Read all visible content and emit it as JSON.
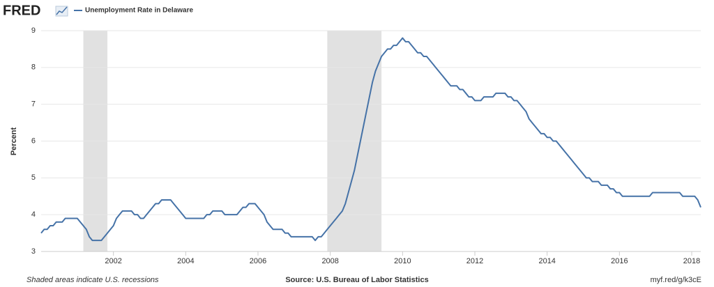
{
  "logo": "FRED",
  "chart_data": {
    "type": "line",
    "y_label": "Percent",
    "series": [
      {
        "name": "Unemployment Rate in Delaware",
        "color": "#4572a7",
        "values": [
          3.5,
          3.6,
          3.6,
          3.7,
          3.7,
          3.8,
          3.8,
          3.8,
          3.9,
          3.9,
          3.9,
          3.9,
          3.9,
          3.8,
          3.7,
          3.6,
          3.4,
          3.3,
          3.3,
          3.3,
          3.3,
          3.4,
          3.5,
          3.6,
          3.7,
          3.9,
          4.0,
          4.1,
          4.1,
          4.1,
          4.1,
          4.0,
          4.0,
          3.9,
          3.9,
          4.0,
          4.1,
          4.2,
          4.3,
          4.3,
          4.4,
          4.4,
          4.4,
          4.4,
          4.3,
          4.2,
          4.1,
          4.0,
          3.9,
          3.9,
          3.9,
          3.9,
          3.9,
          3.9,
          3.9,
          4.0,
          4.0,
          4.1,
          4.1,
          4.1,
          4.1,
          4.0,
          4.0,
          4.0,
          4.0,
          4.0,
          4.1,
          4.2,
          4.2,
          4.3,
          4.3,
          4.3,
          4.2,
          4.1,
          4.0,
          3.8,
          3.7,
          3.6,
          3.6,
          3.6,
          3.6,
          3.5,
          3.5,
          3.4,
          3.4,
          3.4,
          3.4,
          3.4,
          3.4,
          3.4,
          3.4,
          3.3,
          3.4,
          3.4,
          3.5,
          3.6,
          3.7,
          3.8,
          3.9,
          4.0,
          4.1,
          4.3,
          4.6,
          4.9,
          5.2,
          5.6,
          6.0,
          6.4,
          6.8,
          7.2,
          7.6,
          7.9,
          8.1,
          8.3,
          8.4,
          8.5,
          8.5,
          8.6,
          8.6,
          8.7,
          8.8,
          8.7,
          8.7,
          8.6,
          8.5,
          8.4,
          8.4,
          8.3,
          8.3,
          8.2,
          8.1,
          8.0,
          7.9,
          7.8,
          7.7,
          7.6,
          7.5,
          7.5,
          7.5,
          7.4,
          7.4,
          7.3,
          7.2,
          7.2,
          7.1,
          7.1,
          7.1,
          7.2,
          7.2,
          7.2,
          7.2,
          7.3,
          7.3,
          7.3,
          7.3,
          7.2,
          7.2,
          7.1,
          7.1,
          7.0,
          6.9,
          6.8,
          6.6,
          6.5,
          6.4,
          6.3,
          6.2,
          6.2,
          6.1,
          6.1,
          6.0,
          6.0,
          5.9,
          5.8,
          5.7,
          5.6,
          5.5,
          5.4,
          5.3,
          5.2,
          5.1,
          5.0,
          5.0,
          4.9,
          4.9,
          4.9,
          4.8,
          4.8,
          4.8,
          4.7,
          4.7,
          4.6,
          4.6,
          4.5,
          4.5,
          4.5,
          4.5,
          4.5,
          4.5,
          4.5,
          4.5,
          4.5,
          4.5,
          4.6,
          4.6,
          4.6,
          4.6,
          4.6,
          4.6,
          4.6,
          4.6,
          4.6,
          4.6,
          4.5,
          4.5,
          4.5,
          4.5,
          4.5,
          4.4,
          4.2
        ]
      }
    ],
    "x": [
      "2000-01",
      "2000-02",
      "2000-03",
      "2000-04",
      "2000-05",
      "2000-06",
      "2000-07",
      "2000-08",
      "2000-09",
      "2000-10",
      "2000-11",
      "2000-12",
      "2001-01",
      "2001-02",
      "2001-03",
      "2001-04",
      "2001-05",
      "2001-06",
      "2001-07",
      "2001-08",
      "2001-09",
      "2001-10",
      "2001-11",
      "2001-12",
      "2002-01",
      "2002-02",
      "2002-03",
      "2002-04",
      "2002-05",
      "2002-06",
      "2002-07",
      "2002-08",
      "2002-09",
      "2002-10",
      "2002-11",
      "2002-12",
      "2003-01",
      "2003-02",
      "2003-03",
      "2003-04",
      "2003-05",
      "2003-06",
      "2003-07",
      "2003-08",
      "2003-09",
      "2003-10",
      "2003-11",
      "2003-12",
      "2004-01",
      "2004-02",
      "2004-03",
      "2004-04",
      "2004-05",
      "2004-06",
      "2004-07",
      "2004-08",
      "2004-09",
      "2004-10",
      "2004-11",
      "2004-12",
      "2005-01",
      "2005-02",
      "2005-03",
      "2005-04",
      "2005-05",
      "2005-06",
      "2005-07",
      "2005-08",
      "2005-09",
      "2005-10",
      "2005-11",
      "2005-12",
      "2006-01",
      "2006-02",
      "2006-03",
      "2006-04",
      "2006-05",
      "2006-06",
      "2006-07",
      "2006-08",
      "2006-09",
      "2006-10",
      "2006-11",
      "2006-12",
      "2007-01",
      "2007-02",
      "2007-03",
      "2007-04",
      "2007-05",
      "2007-06",
      "2007-07",
      "2007-08",
      "2007-09",
      "2007-10",
      "2007-11",
      "2007-12",
      "2008-01",
      "2008-02",
      "2008-03",
      "2008-04",
      "2008-05",
      "2008-06",
      "2008-07",
      "2008-08",
      "2008-09",
      "2008-10",
      "2008-11",
      "2008-12",
      "2009-01",
      "2009-02",
      "2009-03",
      "2009-04",
      "2009-05",
      "2009-06",
      "2009-07",
      "2009-08",
      "2009-09",
      "2009-10",
      "2009-11",
      "2009-12",
      "2010-01",
      "2010-02",
      "2010-03",
      "2010-04",
      "2010-05",
      "2010-06",
      "2010-07",
      "2010-08",
      "2010-09",
      "2010-10",
      "2010-11",
      "2010-12",
      "2011-01",
      "2011-02",
      "2011-03",
      "2011-04",
      "2011-05",
      "2011-06",
      "2011-07",
      "2011-08",
      "2011-09",
      "2011-10",
      "2011-11",
      "2011-12",
      "2012-01",
      "2012-02",
      "2012-03",
      "2012-04",
      "2012-05",
      "2012-06",
      "2012-07",
      "2012-08",
      "2012-09",
      "2012-10",
      "2012-11",
      "2012-12",
      "2013-01",
      "2013-02",
      "2013-03",
      "2013-04",
      "2013-05",
      "2013-06",
      "2013-07",
      "2013-08",
      "2013-09",
      "2013-10",
      "2013-11",
      "2013-12",
      "2014-01",
      "2014-02",
      "2014-03",
      "2014-04",
      "2014-05",
      "2014-06",
      "2014-07",
      "2014-08",
      "2014-09",
      "2014-10",
      "2014-11",
      "2014-12",
      "2015-01",
      "2015-02",
      "2015-03",
      "2015-04",
      "2015-05",
      "2015-06",
      "2015-07",
      "2015-08",
      "2015-09",
      "2015-10",
      "2015-11",
      "2015-12",
      "2016-01",
      "2016-02",
      "2016-03",
      "2016-04",
      "2016-05",
      "2016-06",
      "2016-07",
      "2016-08",
      "2016-09",
      "2016-10",
      "2016-11",
      "2016-12",
      "2017-01",
      "2017-02",
      "2017-03",
      "2017-04",
      "2017-05",
      "2017-06",
      "2017-07",
      "2017-08",
      "2017-09",
      "2017-10",
      "2017-11",
      "2017-12",
      "2018-01",
      "2018-02",
      "2018-03",
      "2018-04"
    ],
    "xlim": [
      "2000-01",
      "2018-04"
    ],
    "xticks": [
      {
        "value": "2002-01",
        "label": "2002"
      },
      {
        "value": "2004-01",
        "label": "2004"
      },
      {
        "value": "2006-01",
        "label": "2006"
      },
      {
        "value": "2008-01",
        "label": "2008"
      },
      {
        "value": "2010-01",
        "label": "2010"
      },
      {
        "value": "2012-01",
        "label": "2012"
      },
      {
        "value": "2014-01",
        "label": "2014"
      },
      {
        "value": "2016-01",
        "label": "2016"
      },
      {
        "value": "2018-01",
        "label": "2018"
      }
    ],
    "ylim": [
      3,
      9
    ],
    "yticks": [
      3,
      4,
      5,
      6,
      7,
      8,
      9
    ],
    "grid": true,
    "recessions": [
      [
        "2001-03",
        "2001-11"
      ],
      [
        "2007-12",
        "2009-06"
      ]
    ],
    "recession_color": "#e1e1e1",
    "footer_left": "Shaded areas indicate U.S. recessions",
    "source": "Source: U.S. Bureau of Labor Statistics",
    "link": "myf.red/g/k3cE"
  }
}
